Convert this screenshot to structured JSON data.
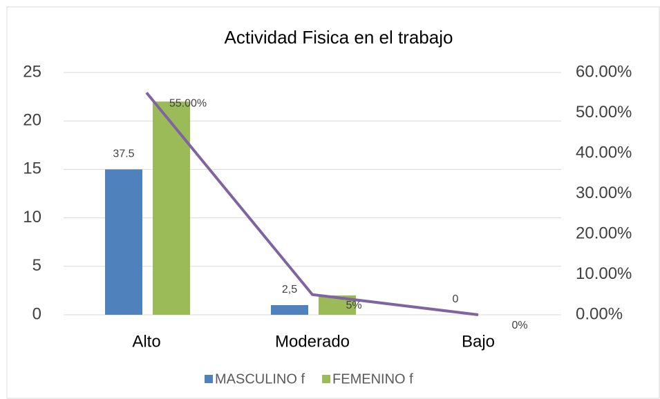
{
  "chart_data": {
    "type": "bar",
    "title": "Actividad Fisica en el trabajo",
    "categories": [
      "Alto",
      "Moderado",
      "Bajo"
    ],
    "series": [
      {
        "name": "MASCULINO f",
        "color": "#4f81bd",
        "values": [
          15,
          1,
          0
        ]
      },
      {
        "name": "FEMENINO f",
        "color": "#9bbb59",
        "values": [
          22,
          2,
          0
        ]
      },
      {
        "type": "line",
        "axis": "y2",
        "color": "#8064a2",
        "values": [
          55,
          5,
          0
        ],
        "value_labels": [
          "55.00%",
          "5%",
          "0%"
        ]
      }
    ],
    "annotations": [
      "37.5",
      "2,5",
      "0"
    ],
    "ylim": [
      0,
      25
    ],
    "yticks": [
      0,
      5,
      10,
      15,
      20,
      25
    ],
    "y2lim": [
      0,
      60
    ],
    "y2ticks": [
      {
        "value": 0,
        "label": "0.00%"
      },
      {
        "value": 10,
        "label": "10.00%"
      },
      {
        "value": 20,
        "label": "20.00%"
      },
      {
        "value": 30,
        "label": "30.00%"
      },
      {
        "value": 40,
        "label": "40.00%"
      },
      {
        "value": 50,
        "label": "50.00%"
      },
      {
        "value": 60,
        "label": "60.00%"
      }
    ],
    "grid": true,
    "legend": "bottom"
  }
}
